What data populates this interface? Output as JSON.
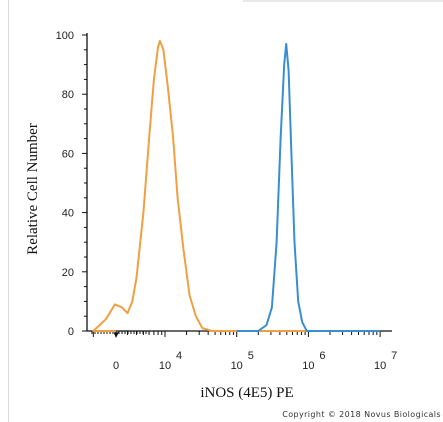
{
  "chart_data": {
    "type": "line",
    "title": "",
    "xlabel": "iNOS (4E5) PE",
    "ylabel": "Relative Cell Number",
    "x_scale": "log",
    "xlim": [
      0,
      10000000
    ],
    "ylim": [
      0,
      100
    ],
    "grid": false,
    "x_tick_labels": [
      {
        "base": "0",
        "exp": ""
      },
      {
        "base": "10",
        "exp": "4"
      },
      {
        "base": "10",
        "exp": "5"
      },
      {
        "base": "10",
        "exp": "6"
      },
      {
        "base": "10",
        "exp": "7"
      }
    ],
    "y_ticks": [
      "0",
      "20",
      "40",
      "60",
      "80",
      "100"
    ],
    "series": [
      {
        "color": "#f0a040",
        "points": [
          [
            0,
            0
          ],
          [
            1000,
            0
          ],
          [
            1500,
            4
          ],
          [
            2000,
            9
          ],
          [
            2500,
            8
          ],
          [
            3000,
            6
          ],
          [
            3500,
            10
          ],
          [
            4000,
            18
          ],
          [
            5000,
            40
          ],
          [
            6000,
            65
          ],
          [
            7000,
            85
          ],
          [
            8000,
            96
          ],
          [
            8500,
            98
          ],
          [
            9500,
            95
          ],
          [
            11000,
            82
          ],
          [
            13000,
            65
          ],
          [
            15000,
            45
          ],
          [
            18000,
            28
          ],
          [
            22000,
            12
          ],
          [
            27000,
            5
          ],
          [
            33000,
            1
          ],
          [
            45000,
            0
          ],
          [
            10000000,
            0
          ]
        ]
      },
      {
        "color": "#3a8ed0",
        "points": [
          [
            100000,
            0
          ],
          [
            200000,
            0
          ],
          [
            260000,
            2
          ],
          [
            310000,
            8
          ],
          [
            360000,
            30
          ],
          [
            410000,
            65
          ],
          [
            460000,
            90
          ],
          [
            490000,
            97
          ],
          [
            530000,
            88
          ],
          [
            580000,
            60
          ],
          [
            640000,
            30
          ],
          [
            720000,
            10
          ],
          [
            820000,
            3
          ],
          [
            950000,
            0
          ],
          [
            10000000,
            0
          ]
        ]
      }
    ]
  },
  "copyright": "Copyright © 2018 Novus Biologicals"
}
